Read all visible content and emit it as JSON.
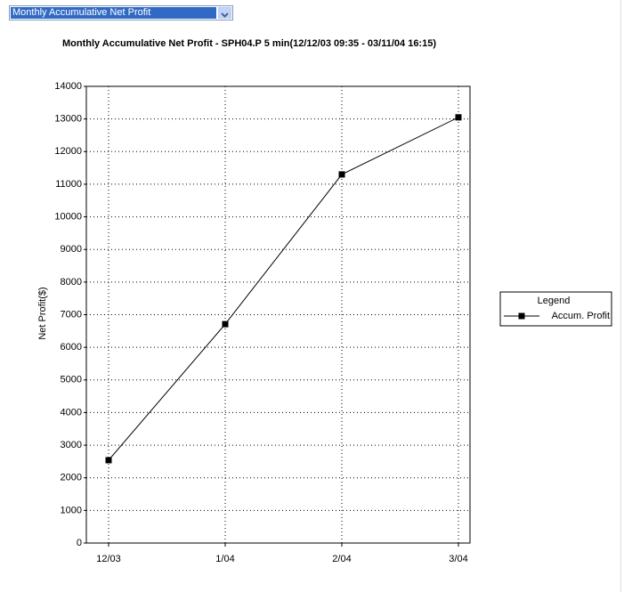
{
  "dropdown": {
    "selected": "Monthly Accumulative Net Profit"
  },
  "chart_data": {
    "type": "line",
    "title": "Monthly Accumulative Net Profit - SPH04.P 5 min(12/12/03 09:35 - 03/11/04 16:15)",
    "y_label": "Net Profit($)",
    "categories": [
      "12/03",
      "1/04",
      "2/04",
      "3/04"
    ],
    "series": [
      {
        "name": "Accum. Profit",
        "color": "#000000",
        "values": [
          2540,
          6710,
          11300,
          13050
        ]
      }
    ],
    "ylim": [
      0,
      14000
    ],
    "yticks": [
      0,
      1000,
      2000,
      3000,
      4000,
      5000,
      6000,
      7000,
      8000,
      9000,
      10000,
      11000,
      12000,
      13000,
      14000
    ],
    "grid": true,
    "legend_title": "Legend",
    "legend": "right"
  }
}
